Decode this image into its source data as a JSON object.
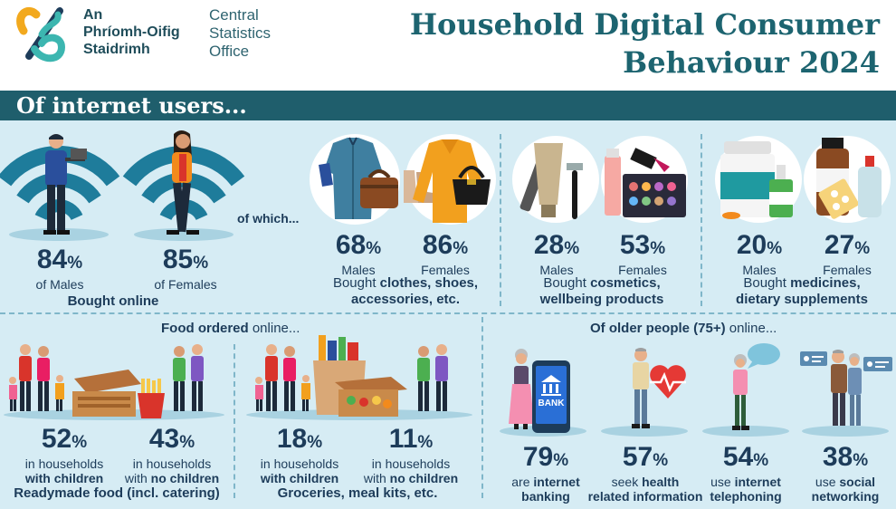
{
  "header": {
    "logo_irish_line1": "An",
    "logo_irish_line2": "Phríomh-Oifig",
    "logo_irish_line3": "Staidrimh",
    "logo_english_line1": "Central",
    "logo_english_line2": "Statistics",
    "logo_english_line3": "Office",
    "title_line1": "Household Digital Consumer",
    "title_line2": "Behaviour 2024"
  },
  "banner": {
    "text": "Of internet users..."
  },
  "colors": {
    "teal_dark": "#1f5e6c",
    "navy": "#1d3c5a",
    "panel_bg": "#d6ecf4",
    "wifi": "#1e7c9b"
  },
  "bought_online": {
    "males_value": "84",
    "males_label": "of Males",
    "females_value": "85",
    "females_label": "of Females",
    "caption": "Bought online"
  },
  "of_which": "of which...",
  "clothes": {
    "males_value": "68",
    "males_label": "Males",
    "females_value": "86",
    "females_label": "Females",
    "caption_pre": "Bought ",
    "caption_bold1": "clothes, shoes,",
    "caption_bold2": "accessories, etc."
  },
  "cosmetics": {
    "males_value": "28",
    "males_label": "Males",
    "females_value": "53",
    "females_label": "Females",
    "caption_pre": "Bought ",
    "caption_bold1": "cosmetics,",
    "caption_bold2": "wellbeing products"
  },
  "medicines": {
    "males_value": "20",
    "males_label": "Males",
    "females_value": "27",
    "females_label": "Females",
    "caption_pre": "Bought ",
    "caption_bold1": "medicines,",
    "caption_bold2": "dietary supplements"
  },
  "food": {
    "heading_bold": "Food ordered",
    "heading_rest": " online...",
    "readymade": {
      "children_value": "52",
      "children_line1": "in households",
      "children_line2": "with children",
      "no_children_value": "43",
      "no_children_line1": "in households",
      "no_children_line2_pre": "with ",
      "no_children_line2_bold": "no children",
      "caption": "Readymade food (incl. catering)"
    },
    "groceries": {
      "children_value": "18",
      "children_line1": "in households",
      "children_line2": "with children",
      "no_children_value": "11",
      "no_children_line1": "in households",
      "no_children_line2_pre": "with ",
      "no_children_line2_bold": "no children",
      "caption": "Groceries, meal kits, etc."
    }
  },
  "older": {
    "heading_bold": "Of older people (75+)",
    "heading_rest": " online...",
    "banking": {
      "value": "79",
      "line1_pre": "are ",
      "line1_bold": "internet",
      "line2": "banking"
    },
    "health": {
      "value": "57",
      "line1_pre": "seek ",
      "line1_bold": "health",
      "line2": "related information"
    },
    "telephoning": {
      "value": "54",
      "line1_pre": "use ",
      "line1_bold": "internet",
      "line2": "telephoning"
    },
    "social": {
      "value": "38",
      "line1_pre": "use ",
      "line1_bold": "social",
      "line2": "networking"
    },
    "bank_sign": "BANK"
  },
  "percent_sign": "%",
  "icons": [
    "logo-knot-icon",
    "wifi-icon",
    "man-laptop-icon",
    "woman-phone-icon",
    "shirt-icon",
    "bag-icon",
    "boots-icon",
    "sweater-icon",
    "handbag-icon",
    "comb-icon",
    "razor-icon",
    "tube-icon",
    "lipstick-icon",
    "palette-icon",
    "pill-jar-icon",
    "pill-bottle-icon",
    "dropper-icon",
    "blister-pack-icon",
    "family-icon",
    "pizza-box-icon",
    "fries-icon",
    "couple-icon",
    "grocery-bag-icon",
    "meal-kit-icon",
    "phone-bank-icon",
    "heart-pulse-icon",
    "speech-bubble-icon",
    "chat-cards-icon"
  ]
}
